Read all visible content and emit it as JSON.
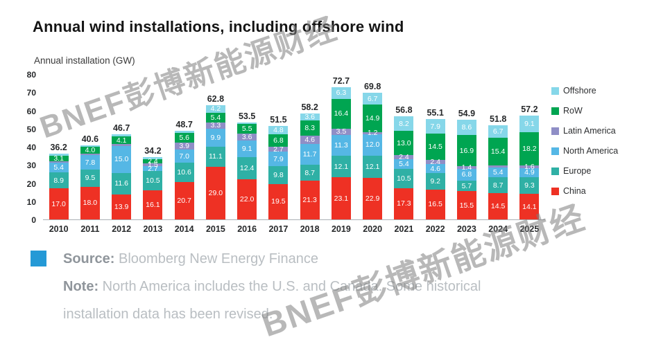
{
  "page": {
    "watermark": "BNEF彭博新能源财经"
  },
  "chart_data": {
    "type": "bar",
    "stacked": true,
    "title": "Annual wind installations, including offshore wind",
    "ylabel": "Annual installation (GW)",
    "ylim": [
      0,
      80
    ],
    "yticks": [
      0,
      10,
      20,
      30,
      40,
      50,
      60,
      70,
      80
    ],
    "grid": false,
    "legend_position": "right",
    "label_min_value": 1.2,
    "categories": [
      "2010",
      "2011",
      "2012",
      "2013",
      "2014",
      "2015",
      "2016",
      "2017",
      "2018",
      "2019",
      "2020",
      "2021",
      "2022",
      "2023",
      "2024",
      "2025"
    ],
    "totals": [
      36.2,
      40.6,
      46.7,
      34.2,
      48.7,
      62.8,
      53.5,
      51.5,
      58.2,
      72.7,
      69.8,
      56.8,
      55.1,
      54.9,
      51.8,
      57.2
    ],
    "series": [
      {
        "name": "China",
        "color": "#ee3124",
        "values": [
          17.0,
          18.0,
          13.9,
          16.1,
          20.7,
          29.0,
          22.0,
          19.5,
          21.3,
          23.1,
          22.9,
          17.3,
          16.5,
          15.5,
          14.5,
          14.1
        ]
      },
      {
        "name": "Europe",
        "color": "#2fb0a5",
        "values": [
          8.9,
          9.5,
          11.6,
          10.5,
          10.6,
          11.1,
          12.4,
          9.8,
          8.7,
          12.1,
          12.1,
          10.5,
          9.2,
          5.7,
          8.7,
          9.3
        ]
      },
      {
        "name": "North America",
        "color": "#55b7e5",
        "values": [
          5.4,
          7.8,
          15.0,
          2.7,
          7.0,
          9.9,
          9.1,
          7.9,
          11.7,
          11.3,
          12.0,
          5.4,
          4.6,
          6.8,
          5.4,
          4.9
        ]
      },
      {
        "name": "Latin America",
        "color": "#8f8ec6",
        "values": [
          0.7,
          0.8,
          1.0,
          1.5,
          3.9,
          3.3,
          3.6,
          2.7,
          4.6,
          3.5,
          1.2,
          2.4,
          2.4,
          1.4,
          1.1,
          1.6
        ]
      },
      {
        "name": "RoW",
        "color": "#00a551",
        "values": [
          3.1,
          4.0,
          4.1,
          2.4,
          5.6,
          5.4,
          5.5,
          6.8,
          8.3,
          16.4,
          14.9,
          13.0,
          14.5,
          16.9,
          15.4,
          18.2
        ]
      },
      {
        "name": "Offshore",
        "color": "#86d7e9",
        "values": [
          1.1,
          0.5,
          1.1,
          1.0,
          0.9,
          4.2,
          0.9,
          4.8,
          3.6,
          6.3,
          6.7,
          8.2,
          7.9,
          8.6,
          6.7,
          9.1
        ]
      }
    ],
    "legend": [
      "Offshore",
      "RoW",
      "Latin America",
      "North America",
      "Europe",
      "China"
    ]
  },
  "footer": {
    "source_label": "Source:",
    "source_text": " Bloomberg New Energy Finance",
    "note_label": "Note:",
    "note_text": " North America includes the U.S. and Canada. Some historical installation data has been revised."
  }
}
